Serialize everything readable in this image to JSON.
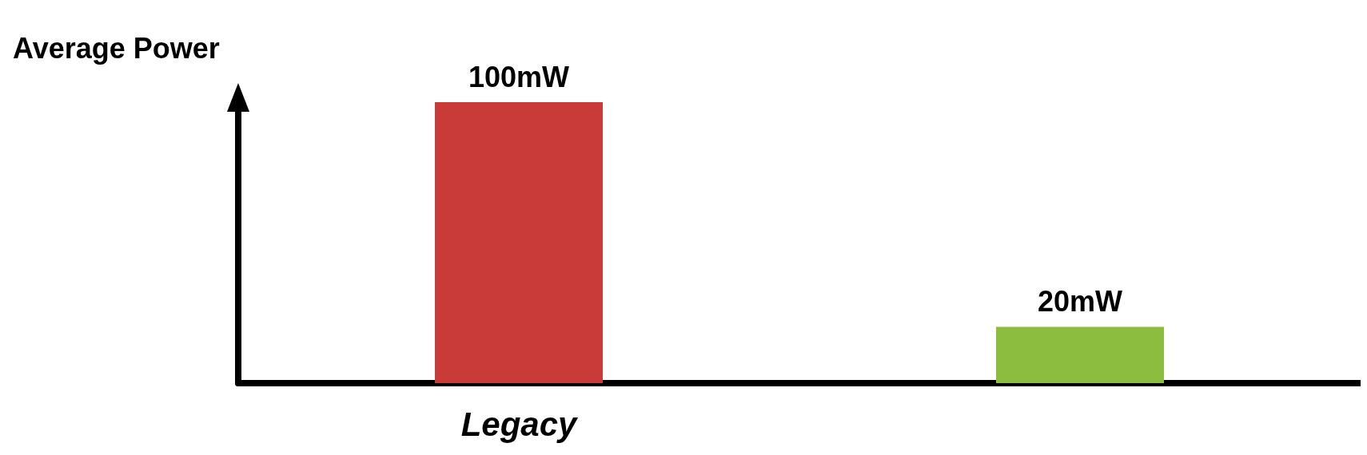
{
  "chart_data": {
    "type": "bar",
    "ylabel": "Average Power",
    "categories": [
      "Legacy",
      null
    ],
    "colors": [
      "#c93b39",
      "#8cbd3f"
    ],
    "values": [
      100,
      20
    ],
    "value_labels": [
      "100mW",
      "20mW"
    ],
    "grid": false
  }
}
